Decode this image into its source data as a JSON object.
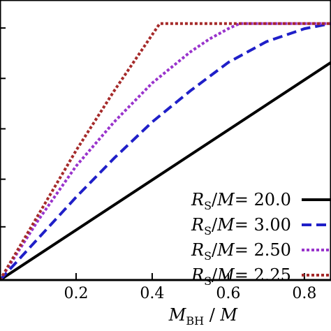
{
  "chart_data": {
    "type": "line",
    "xlabel": {
      "main": "M",
      "sub": "BH",
      "rest": " / M"
    },
    "x_ticks": [
      0.2,
      0.4,
      0.6,
      0.8
    ],
    "x_tick_labels": [
      "0.2",
      "0.4",
      "0.6",
      "0.8"
    ],
    "xlim": [
      0.0,
      0.87
    ],
    "ylim": [
      0.0,
      1.0
    ],
    "grid": false,
    "legend_position": "bottom-right",
    "series": [
      {
        "legend": {
          "prefix": "R",
          "sub": "S",
          "mid": "/",
          "var": "M",
          "value": "= 20.0"
        },
        "color": "#000000",
        "style": "solid",
        "x": [
          0.0,
          0.87
        ],
        "y": [
          0.0,
          0.84
        ]
      },
      {
        "legend": {
          "prefix": "R",
          "sub": "S",
          "mid": "/",
          "var": "M",
          "value": "= 3.00"
        },
        "color": "#1f1fc8",
        "style": "dashed",
        "x": [
          0.0,
          0.1,
          0.2,
          0.3,
          0.4,
          0.5,
          0.6,
          0.7,
          0.8,
          0.87
        ],
        "y": [
          0.0,
          0.16,
          0.32,
          0.47,
          0.61,
          0.73,
          0.84,
          0.92,
          0.97,
          0.99
        ]
      },
      {
        "legend": {
          "prefix": "R",
          "sub": "S",
          "mid": "/",
          "var": "M",
          "value": "= 2.50"
        },
        "color": "#9933cc",
        "style": "dotted",
        "x": [
          0.0,
          0.1,
          0.2,
          0.3,
          0.4,
          0.5,
          0.55,
          0.6,
          0.63,
          0.87
        ],
        "y": [
          0.0,
          0.23,
          0.44,
          0.61,
          0.76,
          0.88,
          0.93,
          0.97,
          0.99,
          0.99
        ]
      },
      {
        "legend": {
          "prefix": "R",
          "sub": "S",
          "mid": "/",
          "var": "M",
          "value": "= 2.25"
        },
        "color": "#a52a2a",
        "style": "dotted",
        "x": [
          0.0,
          0.1,
          0.2,
          0.3,
          0.42,
          0.87
        ],
        "y": [
          0.0,
          0.25,
          0.5,
          0.73,
          0.99,
          0.99
        ]
      }
    ]
  }
}
